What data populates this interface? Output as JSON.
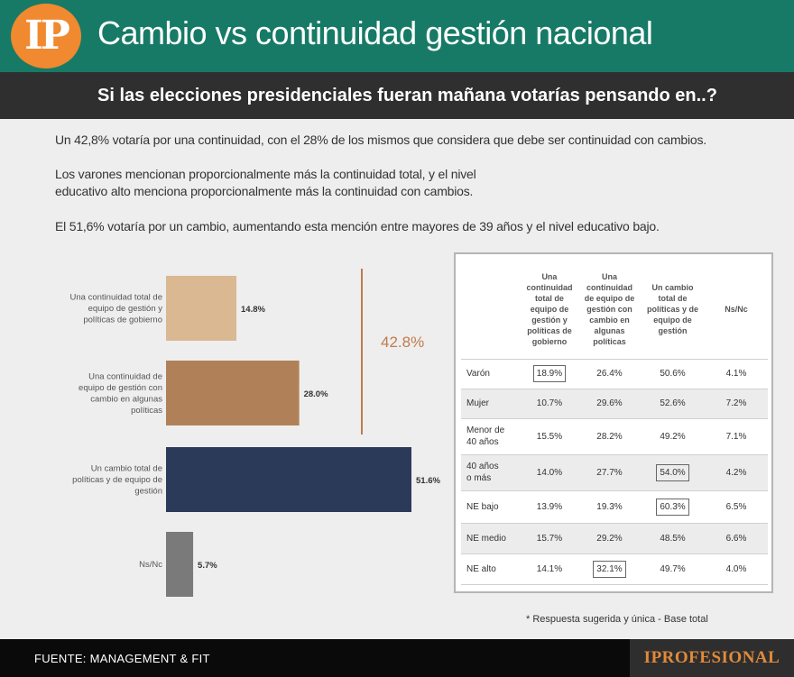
{
  "header": {
    "logo_text": "IP",
    "title": "Cambio vs continuidad gestión nacional",
    "subtitle": "Si las elecciones presidenciales fueran mañana votarías pensando en..?"
  },
  "paragraphs": [
    "Un 42,8% votaría por una continuidad, con el 28% de los mismos que considera que debe ser continuidad con cambios.",
    "Los varones mencionan proporcionalmente más la continuidad total, y el nivel",
    "educativo alto menciona proporcionalmente más la continuidad con cambios.",
    "El 51,6% votaría por un cambio, aumentando esta mención entre mayores de 39 años y el nivel educativo bajo."
  ],
  "colors": {
    "header_bg": "#177a66",
    "subheader_bg": "#2f2f2f",
    "logo": "#f0892f",
    "bar_continuidad_total": "#d9b892",
    "bar_continuidad_cambios": "#b08158",
    "bar_cambio": "#2c3a5a",
    "bar_nsnc": "#7a7a7a",
    "bracket": "#c07c4a"
  },
  "chart_data": [
    {
      "type": "bar",
      "orientation": "horizontal",
      "categories": [
        [
          "Una continuidad total de",
          "equipo de gestión y",
          "políticas de gobierno"
        ],
        [
          "Una continuidad de",
          "equipo de gestión con",
          "cambio en algunas",
          "políticas"
        ],
        [
          "Un cambio total de",
          "políticas y de equipo de",
          "gestión"
        ],
        [
          "Ns/Nc"
        ]
      ],
      "values": [
        14.8,
        28.0,
        51.6,
        5.7
      ],
      "value_labels": [
        "14.8%",
        "28.0%",
        "51.6%",
        "5.7%"
      ],
      "bracket_label": "42.8%",
      "bracket_value": 42.8,
      "xlim": [
        0,
        51.6
      ]
    },
    {
      "type": "table",
      "columns": [
        "",
        [
          "Una",
          "continuidad",
          "total de",
          "equipo de",
          "gestión y",
          "políticas de",
          "gobierno"
        ],
        [
          "Una",
          "continuidad",
          "de equipo de",
          "gestión con",
          "cambio en",
          "algunas",
          "políticas"
        ],
        [
          "Un cambio",
          "total de",
          "políticas y de",
          "equipo de",
          "gestión"
        ],
        [
          "Ns/Nc"
        ]
      ],
      "rows": [
        {
          "label": [
            "Varón"
          ],
          "values": [
            "18.9%",
            "26.4%",
            "50.6%",
            "4.1%"
          ],
          "highlight": [
            0
          ]
        },
        {
          "label": [
            "Mujer"
          ],
          "values": [
            "10.7%",
            "29.6%",
            "52.6%",
            "7.2%"
          ],
          "highlight": []
        },
        {
          "label": [
            "Menor de",
            "40 años"
          ],
          "values": [
            "15.5%",
            "28.2%",
            "49.2%",
            "7.1%"
          ],
          "highlight": []
        },
        {
          "label": [
            "40 años",
            "o más"
          ],
          "values": [
            "14.0%",
            "27.7%",
            "54.0%",
            "4.2%"
          ],
          "highlight": [
            2
          ]
        },
        {
          "label": [
            "NE bajo"
          ],
          "values": [
            "13.9%",
            "19.3%",
            "60.3%",
            "6.5%"
          ],
          "highlight": [
            2
          ]
        },
        {
          "label": [
            "NE medio"
          ],
          "values": [
            "15.7%",
            "29.2%",
            "48.5%",
            "6.6%"
          ],
          "highlight": []
        },
        {
          "label": [
            "NE alto"
          ],
          "values": [
            "14.1%",
            "32.1%",
            "49.7%",
            "4.0%"
          ],
          "highlight": [
            1
          ]
        }
      ]
    }
  ],
  "footnote": "* Respuesta sugerida y única - Base total",
  "footer": {
    "source": "FUENTE: MANAGEMENT & FIT",
    "brand": "IPROFESIONAL"
  }
}
